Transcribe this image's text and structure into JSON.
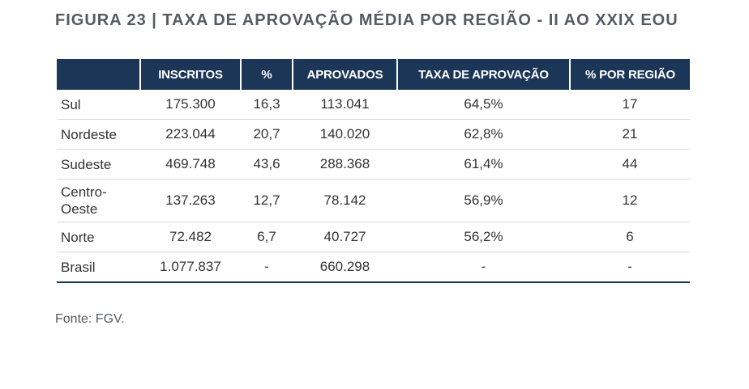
{
  "figure": {
    "title": "FIGURA 23 | TAXA DE APROVAÇÃO MÉDIA POR REGIÃO - II AO XXIX EOU"
  },
  "table": {
    "headers": [
      "",
      "INSCRITOS",
      "%",
      "APROVADOS",
      "TAXA DE APROVAÇÃO",
      "% POR REGIÃO"
    ],
    "rows": [
      [
        "Sul",
        "175.300",
        "16,3",
        "113.041",
        "64,5%",
        "17"
      ],
      [
        "Nordeste",
        "223.044",
        "20,7",
        "140.020",
        "62,8%",
        "21"
      ],
      [
        "Sudeste",
        "469.748",
        "43,6",
        "288.368",
        "61,4%",
        "44"
      ],
      [
        "Centro-\nOeste",
        "137.263",
        "12,7",
        "78.142",
        "56,9%",
        "12"
      ],
      [
        "Norte",
        "72.482",
        "6,7",
        "40.727",
        "56,2%",
        "6"
      ],
      [
        "Brasil",
        "1.077.837",
        "-",
        "660.298",
        "-",
        "-"
      ]
    ]
  },
  "source": "Fonte: FGV.",
  "colors": {
    "header_bg": "#1c3657",
    "header_text": "#ffffff",
    "title_text": "#555b63"
  }
}
